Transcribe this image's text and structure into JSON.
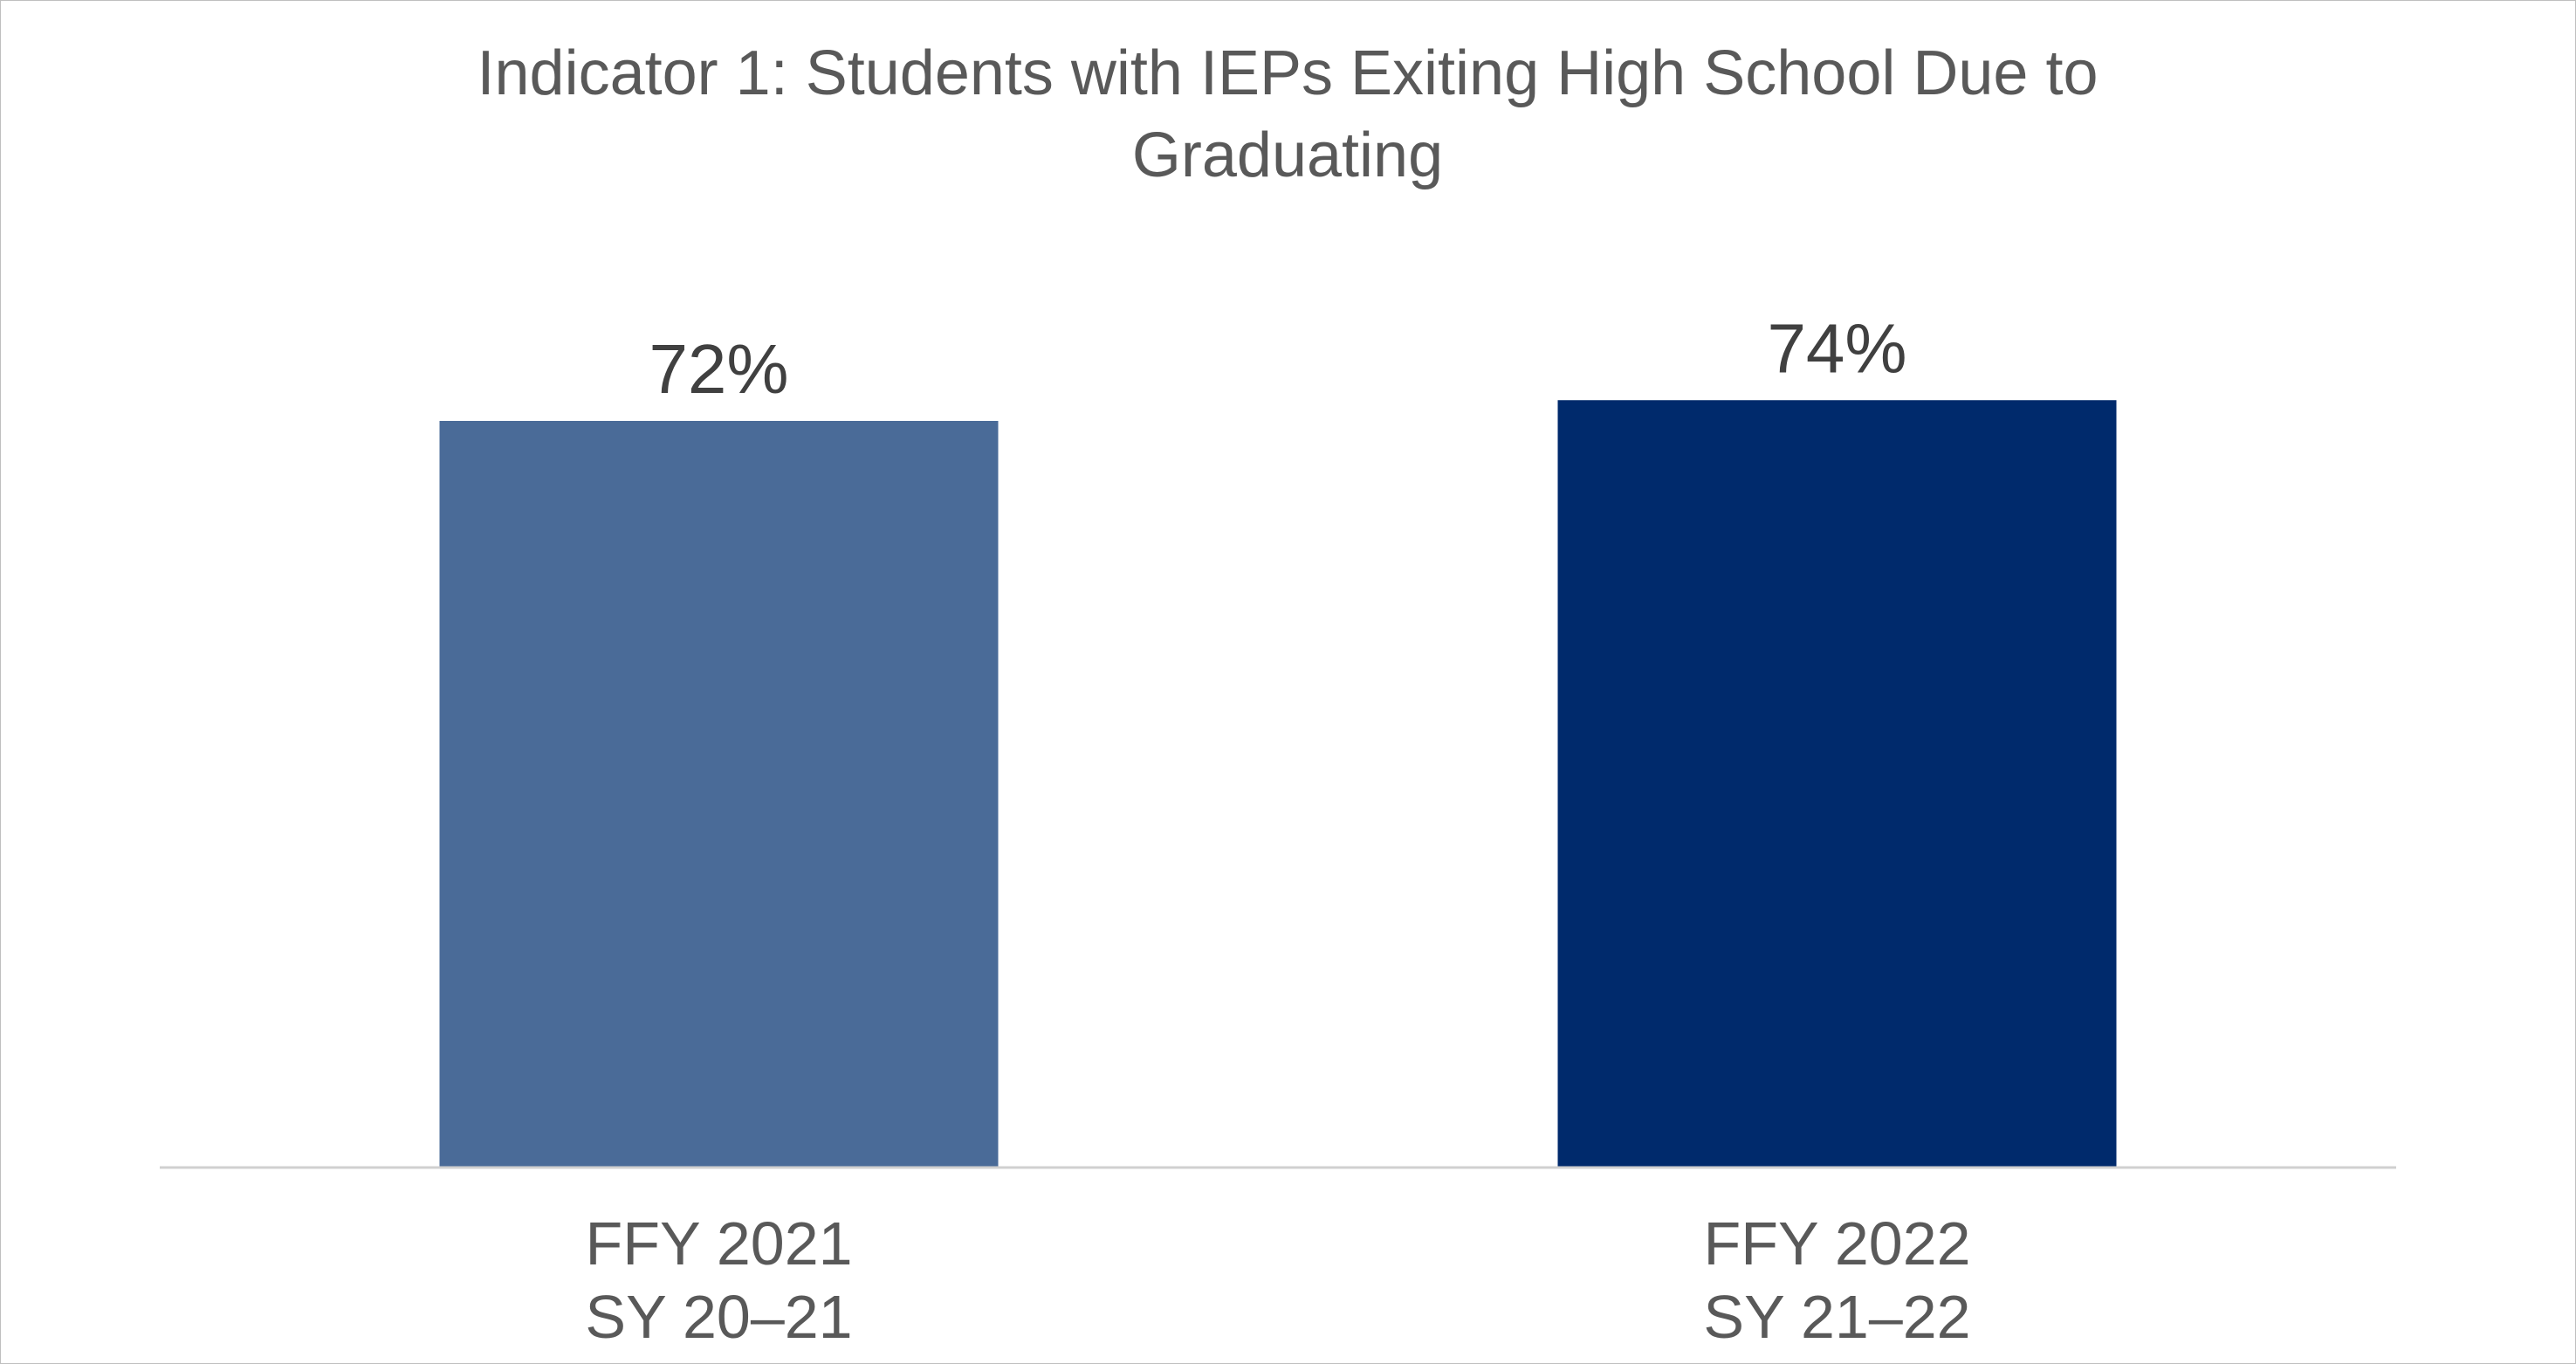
{
  "chart_data": {
    "type": "bar",
    "title_lines": [
      "Indicator 1: Students with IEPs Exiting High School Due to",
      "Graduating"
    ],
    "categories": [
      [
        "FFY 2021",
        "SY 20–21"
      ],
      [
        "FFY 2022",
        "SY 21–22"
      ]
    ],
    "values": [
      72,
      74
    ],
    "value_labels": [
      "72%",
      "74%"
    ],
    "bar_colors": [
      "#4a6b98",
      "#002a6c"
    ],
    "ylim": [
      0,
      100
    ],
    "grid": false,
    "legend": "none"
  }
}
